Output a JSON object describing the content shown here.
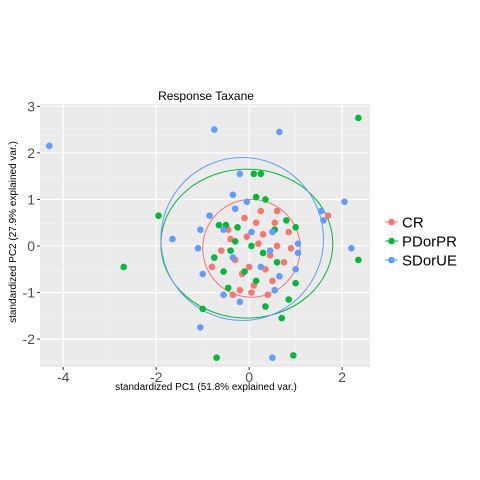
{
  "chart_data": {
    "type": "scatter",
    "title": "Response Taxane",
    "xlabel": "standardized PC1 (51.8% explained var.)",
    "ylabel": "standardized PC2 (27.9% explained var.)",
    "xlim": [
      -4.5,
      2.6
    ],
    "ylim": [
      -2.6,
      3.05
    ],
    "x_ticks": [
      -4,
      -2,
      0,
      2
    ],
    "y_ticks": [
      -2,
      -1,
      0,
      1,
      2,
      3
    ],
    "grid": true,
    "legend_position": "right",
    "series": [
      {
        "name": "CR",
        "color": "#F8766D",
        "ellipse": {
          "cx": 0.05,
          "cy": -0.05,
          "rx": 1.05,
          "ry": 1.05
        },
        "points": [
          [
            -0.1,
            0.6
          ],
          [
            0.15,
            0.5
          ],
          [
            -0.4,
            0.15
          ],
          [
            0.3,
            0.25
          ],
          [
            0.55,
            0.5
          ],
          [
            -0.05,
            0.2
          ],
          [
            0.2,
            0.05
          ],
          [
            -0.6,
            -0.1
          ],
          [
            0.45,
            -0.2
          ],
          [
            0.6,
            0.0
          ],
          [
            -0.3,
            -0.3
          ],
          [
            0.0,
            -0.45
          ],
          [
            0.35,
            -0.5
          ],
          [
            0.75,
            -0.35
          ],
          [
            -0.15,
            -0.6
          ],
          [
            0.1,
            -0.85
          ],
          [
            0.5,
            -0.75
          ],
          [
            -0.45,
            0.35
          ],
          [
            0.85,
            0.3
          ],
          [
            -0.8,
            -0.45
          ],
          [
            0.25,
            0.75
          ],
          [
            0.6,
            0.75
          ],
          [
            -0.2,
            -0.95
          ],
          [
            1.7,
            0.65
          ],
          [
            0.9,
            -0.05
          ],
          [
            0.4,
            -1.05
          ],
          [
            -0.35,
            -1.05
          ],
          [
            0.05,
            -1.0
          ]
        ]
      },
      {
        "name": "PDorPR",
        "color": "#00BA38",
        "ellipse": {
          "cx": -0.05,
          "cy": 0.05,
          "rx": 1.85,
          "ry": 1.6
        },
        "points": [
          [
            2.35,
            2.75
          ],
          [
            0.1,
            1.55
          ],
          [
            0.25,
            1.55
          ],
          [
            0.15,
            1.05
          ],
          [
            0.35,
            1.0
          ],
          [
            -1.95,
            0.65
          ],
          [
            -0.65,
            0.45
          ],
          [
            -0.5,
            0.45
          ],
          [
            0.8,
            0.55
          ],
          [
            -0.25,
            0.4
          ],
          [
            0.55,
            0.35
          ],
          [
            -0.4,
            -0.1
          ],
          [
            0.05,
            0.0
          ],
          [
            0.3,
            -0.15
          ],
          [
            1.0,
            0.4
          ],
          [
            -2.7,
            -0.45
          ],
          [
            2.35,
            -0.3
          ],
          [
            -0.75,
            -0.25
          ],
          [
            0.6,
            -0.35
          ],
          [
            1.0,
            -0.8
          ],
          [
            -0.55,
            -0.55
          ],
          [
            -0.1,
            -0.55
          ],
          [
            0.85,
            -1.15
          ],
          [
            0.15,
            -0.75
          ],
          [
            -0.45,
            -0.9
          ],
          [
            -1.0,
            -1.35
          ],
          [
            0.35,
            -1.3
          ],
          [
            0.7,
            -1.55
          ],
          [
            -0.7,
            -2.4
          ],
          [
            0.95,
            -2.35
          ],
          [
            -0.3,
            0.1
          ]
        ]
      },
      {
        "name": "SDorUE",
        "color": "#619CFF",
        "ellipse": {
          "cx": -0.15,
          "cy": 0.15,
          "rx": 1.75,
          "ry": 1.75
        },
        "points": [
          [
            -4.3,
            2.15
          ],
          [
            -0.75,
            2.5
          ],
          [
            0.65,
            2.45
          ],
          [
            -0.2,
            1.55
          ],
          [
            -0.35,
            1.1
          ],
          [
            2.05,
            0.95
          ],
          [
            -0.05,
            0.95
          ],
          [
            1.55,
            0.75
          ],
          [
            -0.85,
            0.65
          ],
          [
            -1.05,
            0.35
          ],
          [
            -0.55,
            0.35
          ],
          [
            0.5,
            0.3
          ],
          [
            -1.65,
            0.15
          ],
          [
            -1.1,
            -0.05
          ],
          [
            0.45,
            -0.1
          ],
          [
            1.05,
            -0.15
          ],
          [
            2.2,
            -0.05
          ],
          [
            -1.0,
            -0.6
          ],
          [
            -0.35,
            -0.25
          ],
          [
            -0.2,
            -1.2
          ],
          [
            0.65,
            -0.65
          ],
          [
            0.55,
            -0.95
          ],
          [
            -0.55,
            -1.05
          ],
          [
            1.0,
            -0.5
          ],
          [
            -1.05,
            -1.75
          ],
          [
            0.5,
            -2.4
          ],
          [
            1.6,
            0.55
          ],
          [
            1.05,
            0.05
          ],
          [
            0.25,
            -0.45
          ],
          [
            0.05,
            0.3
          ],
          [
            -0.3,
            0.8
          ]
        ]
      }
    ]
  }
}
